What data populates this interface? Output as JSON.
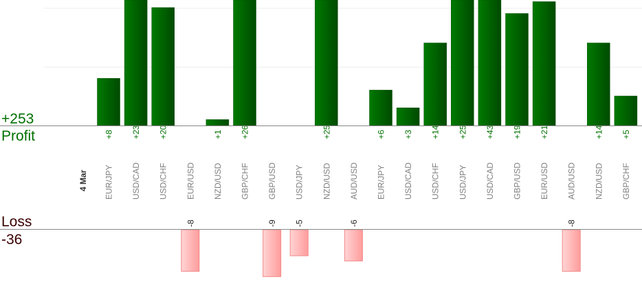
{
  "chart_data": {
    "type": "bar",
    "date_label": "4 Mar",
    "profit_total": "+253",
    "profit_label": "Profit",
    "loss_label": "Loss",
    "loss_total": "-36",
    "categories": [
      "EUR/JPY",
      "USD/CAD",
      "USD/CHF",
      "EUR/USD",
      "NZD/USD",
      "GBP/CHF",
      "GBP/USD",
      "USD/JPY",
      "NZD/USD",
      "AUD/USD",
      "EUR/JPY",
      "USD/CAD",
      "USD/CHF",
      "USD/JPY",
      "USD/CAD",
      "GBP/USD",
      "EUR/USD",
      "AUD/USD",
      "NZD/USD",
      "GBP/CHF"
    ],
    "values": [
      8,
      23,
      20,
      -8,
      1,
      26,
      -9,
      -5,
      25,
      -6,
      6,
      3,
      14,
      25,
      43,
      19,
      21,
      -8,
      14,
      5
    ],
    "grid": true,
    "colors": {
      "profit": "#006400",
      "profit_text": "#007000",
      "loss": "#ffaaaa",
      "loss_text": "#3a0000",
      "label": "#808080"
    }
  }
}
